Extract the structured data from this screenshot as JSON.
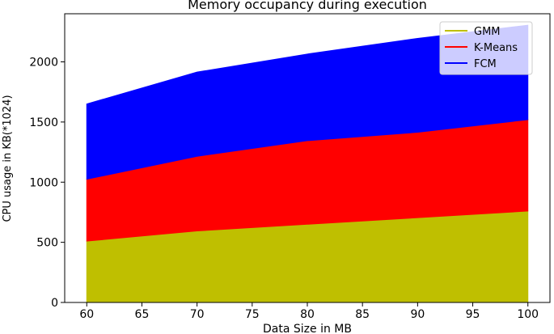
{
  "chart_data": {
    "type": "area",
    "stacked": true,
    "title": "Memory occupancy during execution",
    "xlabel": "Data Size in MB",
    "ylabel": "CPU usage in KB(*1024)",
    "x": [
      60,
      70,
      80,
      90,
      100
    ],
    "xlim": [
      58,
      102
    ],
    "ylim": [
      0,
      2400
    ],
    "xticks": [
      60,
      65,
      70,
      75,
      80,
      85,
      90,
      95,
      100
    ],
    "yticks": [
      0,
      500,
      1000,
      1500,
      2000
    ],
    "grid": false,
    "legend_position": "top-right",
    "series": [
      {
        "name": "GMM",
        "color": "#bfbf00",
        "values": [
          510,
          595,
          650,
          705,
          760
        ]
      },
      {
        "name": "K-Means",
        "color": "#ff0000",
        "values": [
          515,
          620,
          695,
          710,
          760
        ]
      },
      {
        "name": "FCM",
        "color": "#0000ff",
        "values": [
          625,
          700,
          720,
          780,
          785
        ]
      }
    ]
  }
}
